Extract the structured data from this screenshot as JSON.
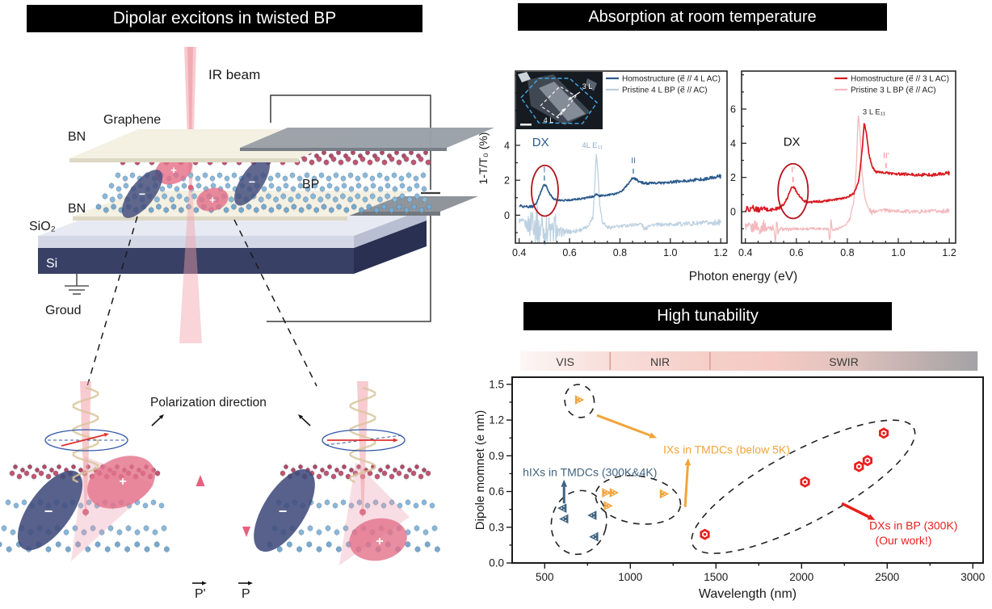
{
  "panels": {
    "title_left": "Dipolar excitons in twisted BP",
    "title_absorption": "Absorption at room temperature",
    "title_tunability": "High tunability"
  },
  "device": {
    "ir_beam": "IR beam",
    "graphene": "Graphene",
    "bn_top": "BN",
    "bp": "BP",
    "bn_bottom": "BN",
    "sio2": "SiO₂",
    "si": "Si",
    "ground": "Groud",
    "plus": "+",
    "minus": "−"
  },
  "zoom_panel": {
    "polarization": "Polarization direction",
    "p_prime": "P'",
    "p": "P",
    "plus": "+",
    "minus": "−"
  },
  "chart_data": [
    {
      "type": "line",
      "id": "abs-left",
      "ylabel": "1-T/T₀ (%)",
      "xlabel": "Photon energy (eV)",
      "xlim": [
        0.385,
        1.225
      ],
      "ylim": [
        -1.6,
        8.25
      ],
      "xticks": [
        0.4,
        0.6,
        0.8,
        1.0,
        1.2
      ],
      "yticks": [
        0,
        2,
        4
      ],
      "legend": [
        {
          "label": "Homostructure (e⃗ // 4 L AC)",
          "color": "#2b5a8c"
        },
        {
          "label": "Pristine 4 L BP (e⃗ // AC)",
          "color": "#b9cede"
        }
      ],
      "inset": {
        "labels": [
          "3 L",
          "4 L"
        ]
      },
      "annotations": [
        {
          "text": "DX",
          "x": 0.485,
          "y": 3.95,
          "color": "#2b5a8c",
          "size": 15
        },
        {
          "text": "I",
          "x": 0.5,
          "y": 2.45,
          "color": "#3c6d99",
          "size": 10
        },
        {
          "text": "4L E₁₁",
          "x": 0.69,
          "y": 3.85,
          "color": "#93abc4",
          "size": 9.5
        },
        {
          "text": "II",
          "x": 0.853,
          "y": 2.98,
          "color": "#3c6d99",
          "size": 10
        }
      ],
      "peak_ticks": [
        [
          0.5,
          1.98,
          2.26,
          "#3c6d99"
        ],
        [
          0.853,
          2.38,
          2.66,
          "#3c6d99"
        ]
      ],
      "ellipse": {
        "x": 0.502,
        "y": 1.4,
        "rx": 0.053,
        "ry": 1.45,
        "color": "#b5121b"
      },
      "series": [
        {
          "name": "pristine-4L-BP",
          "color": "#bdd1e1",
          "width": 1.3,
          "points": [
            [
              0.4,
              -0.3,
              0.15
            ],
            [
              0.43,
              -0.55,
              0.3
            ],
            [
              0.445,
              -0.55,
              0.9
            ],
            [
              0.455,
              0.2,
              1.1
            ],
            [
              0.462,
              -0.6,
              1.1
            ],
            [
              0.47,
              -0.3,
              1.2
            ],
            [
              0.478,
              -1.0,
              0.9
            ],
            [
              0.49,
              -0.5,
              1.1
            ],
            [
              0.5,
              -1.05,
              0.7
            ],
            [
              0.515,
              -0.7,
              0.9
            ],
            [
              0.53,
              -1.1,
              0.7
            ],
            [
              0.545,
              -0.6,
              0.9
            ],
            [
              0.555,
              -1.1,
              0.4
            ],
            [
              0.57,
              -0.95,
              0.25
            ],
            [
              0.6,
              -0.95,
              0.15
            ],
            [
              0.64,
              -0.85,
              0.12
            ],
            [
              0.67,
              -0.7,
              0.1
            ],
            [
              0.693,
              -0.1,
              0.1
            ],
            [
              0.7,
              1.8,
              0.1
            ],
            [
              0.706,
              3.55,
              0.08
            ],
            [
              0.712,
              2.6,
              0.08
            ],
            [
              0.72,
              0.6,
              0.1
            ],
            [
              0.73,
              -0.35,
              0.12
            ],
            [
              0.75,
              -0.7,
              0.1
            ],
            [
              0.78,
              -0.68,
              0.1
            ],
            [
              0.85,
              -0.55,
              0.1
            ],
            [
              0.885,
              -0.5,
              0.1
            ],
            [
              0.9,
              -0.85,
              0.12
            ],
            [
              0.915,
              -0.55,
              0.1
            ],
            [
              0.95,
              -0.55,
              0.1
            ],
            [
              1.05,
              -0.5,
              0.12
            ],
            [
              1.15,
              -0.45,
              0.15
            ],
            [
              1.2,
              -0.4,
              0.17
            ]
          ]
        },
        {
          "name": "homostructure-4L",
          "color": "#2b5a8c",
          "width": 1.7,
          "points": [
            [
              0.4,
              0.55,
              0.07
            ],
            [
              0.43,
              0.48,
              0.07
            ],
            [
              0.455,
              0.5,
              0.06
            ],
            [
              0.47,
              0.7,
              0.05
            ],
            [
              0.485,
              1.3,
              0.05
            ],
            [
              0.497,
              1.75,
              0.05
            ],
            [
              0.507,
              1.68,
              0.05
            ],
            [
              0.52,
              1.25,
              0.05
            ],
            [
              0.535,
              0.95,
              0.05
            ],
            [
              0.55,
              0.85,
              0.05
            ],
            [
              0.58,
              0.85,
              0.05
            ],
            [
              0.62,
              0.9,
              0.05
            ],
            [
              0.66,
              0.97,
              0.05
            ],
            [
              0.695,
              1.07,
              0.05
            ],
            [
              0.705,
              1.22,
              0.05
            ],
            [
              0.715,
              1.1,
              0.05
            ],
            [
              0.74,
              1.12,
              0.05
            ],
            [
              0.78,
              1.22,
              0.05
            ],
            [
              0.81,
              1.4,
              0.05
            ],
            [
              0.835,
              1.85,
              0.06
            ],
            [
              0.85,
              2.12,
              0.06
            ],
            [
              0.862,
              2.07,
              0.06
            ],
            [
              0.88,
              1.88,
              0.06
            ],
            [
              0.91,
              1.82,
              0.07
            ],
            [
              0.97,
              1.85,
              0.07
            ],
            [
              1.03,
              1.92,
              0.08
            ],
            [
              1.1,
              2.02,
              0.09
            ],
            [
              1.15,
              2.1,
              0.1
            ],
            [
              1.2,
              2.22,
              0.11
            ]
          ]
        }
      ]
    },
    {
      "type": "line",
      "id": "abs-right",
      "xlim": [
        0.385,
        1.225
      ],
      "ylim": [
        -1.84,
        8.22
      ],
      "xticks": [
        0.4,
        0.6,
        0.8,
        1.0,
        1.2
      ],
      "yticks": [
        0,
        2,
        4,
        6
      ],
      "legend": [
        {
          "label": "Homostructure (e⃗ // 3 L AC)",
          "color": "#d71920"
        },
        {
          "label": "Pristine 3 L BP (e⃗ // AC)",
          "color": "#f3b9bd"
        }
      ],
      "annotations": [
        {
          "text": "DX",
          "x": 0.582,
          "y": 3.85,
          "color": "#111111",
          "size": 15
        },
        {
          "text": "I'",
          "x": 0.587,
          "y": 2.3,
          "color": "#ef8a8a",
          "size": 10
        },
        {
          "text": "3 L E₁₁",
          "x": 0.905,
          "y": 5.7,
          "color": "#222222",
          "size": 9.5
        },
        {
          "text": "II'",
          "x": 0.952,
          "y": 3.12,
          "color": "#ef8a8a",
          "size": 10
        }
      ],
      "peak_ticks": [
        [
          0.587,
          1.72,
          2.02,
          "#ef8a8a"
        ],
        [
          0.952,
          2.55,
          2.84,
          "#ef8a8a"
        ]
      ],
      "ellipse": {
        "x": 0.587,
        "y": 1.2,
        "rx": 0.059,
        "ry": 1.6,
        "color": "#b5121b"
      },
      "series": [
        {
          "name": "pristine-3L-BP",
          "color": "#f3b9bd",
          "width": 1.3,
          "points": [
            [
              0.4,
              -0.85,
              0.25
            ],
            [
              0.425,
              -1.0,
              0.3
            ],
            [
              0.44,
              -0.75,
              0.35
            ],
            [
              0.455,
              -1.05,
              0.3
            ],
            [
              0.47,
              -0.8,
              0.35
            ],
            [
              0.485,
              -1.0,
              0.25
            ],
            [
              0.5,
              -0.9,
              0.2
            ],
            [
              0.512,
              -0.95,
              0.15
            ],
            [
              0.518,
              -1.9,
              0.1
            ],
            [
              0.523,
              -0.35,
              0.1
            ],
            [
              0.528,
              -1.35,
              0.1
            ],
            [
              0.535,
              -1.0,
              0.1
            ],
            [
              0.56,
              -1.05,
              0.1
            ],
            [
              0.6,
              -1.0,
              0.08
            ],
            [
              0.65,
              -1.0,
              0.08
            ],
            [
              0.7,
              -0.98,
              0.08
            ],
            [
              0.726,
              -1.0,
              0.08
            ],
            [
              0.731,
              -1.75,
              0.05
            ],
            [
              0.736,
              -0.5,
              0.05
            ],
            [
              0.741,
              -1.1,
              0.05
            ],
            [
              0.76,
              -1.0,
              0.08
            ],
            [
              0.79,
              -0.85,
              0.08
            ],
            [
              0.81,
              -0.45,
              0.08
            ],
            [
              0.825,
              0.6,
              0.08
            ],
            [
              0.835,
              2.5,
              0.08
            ],
            [
              0.843,
              5.75,
              0.05
            ],
            [
              0.85,
              4.6,
              0.05
            ],
            [
              0.858,
              2.2,
              0.08
            ],
            [
              0.868,
              0.9,
              0.1
            ],
            [
              0.88,
              0.25,
              0.15
            ],
            [
              0.895,
              -0.05,
              0.15
            ],
            [
              0.92,
              0.1,
              0.1
            ],
            [
              0.97,
              0.05,
              0.1
            ],
            [
              1.05,
              0.0,
              0.1
            ],
            [
              1.15,
              0.02,
              0.12
            ],
            [
              1.2,
              0.05,
              0.13
            ]
          ]
        },
        {
          "name": "homostructure-3L",
          "color": "#d71920",
          "width": 1.7,
          "points": [
            [
              0.4,
              0.15,
              0.18
            ],
            [
              0.43,
              0.2,
              0.18
            ],
            [
              0.45,
              0.1,
              0.15
            ],
            [
              0.47,
              0.18,
              0.15
            ],
            [
              0.49,
              0.1,
              0.12
            ],
            [
              0.51,
              0.12,
              0.12
            ],
            [
              0.53,
              0.2,
              0.1
            ],
            [
              0.55,
              0.4,
              0.08
            ],
            [
              0.565,
              0.8,
              0.06
            ],
            [
              0.578,
              1.35,
              0.06
            ],
            [
              0.59,
              1.45,
              0.06
            ],
            [
              0.6,
              1.2,
              0.06
            ],
            [
              0.615,
              0.85,
              0.06
            ],
            [
              0.63,
              0.62,
              0.06
            ],
            [
              0.65,
              0.55,
              0.06
            ],
            [
              0.68,
              0.58,
              0.06
            ],
            [
              0.72,
              0.63,
              0.06
            ],
            [
              0.76,
              0.72,
              0.06
            ],
            [
              0.8,
              0.85,
              0.06
            ],
            [
              0.825,
              1.05,
              0.06
            ],
            [
              0.845,
              1.8,
              0.06
            ],
            [
              0.858,
              3.6,
              0.06
            ],
            [
              0.866,
              5.15,
              0.05
            ],
            [
              0.874,
              4.7,
              0.05
            ],
            [
              0.885,
              3.3,
              0.06
            ],
            [
              0.9,
              2.55,
              0.06
            ],
            [
              0.915,
              2.3,
              0.07
            ],
            [
              0.94,
              2.28,
              0.07
            ],
            [
              1.0,
              2.2,
              0.08
            ],
            [
              1.08,
              2.15,
              0.09
            ],
            [
              1.15,
              2.17,
              0.1
            ],
            [
              1.2,
              2.25,
              0.11
            ]
          ]
        }
      ]
    },
    {
      "type": "scatter",
      "id": "tunability",
      "xlabel": "Wavelength (nm)",
      "ylabel": "Dipole momnet (e nm)",
      "xlim": [
        310,
        3060
      ],
      "ylim": [
        0,
        1.56
      ],
      "xticks": [
        500,
        1000,
        1500,
        2000,
        2500,
        3000
      ],
      "yticks": [
        0.0,
        0.3,
        0.6,
        0.9,
        1.2,
        1.5
      ],
      "bands": {
        "labels": [
          "VIS",
          "NIR",
          "SWIR"
        ],
        "range_nm": [
          358,
          3028
        ],
        "dividers_nm": [
          882,
          1465
        ]
      },
      "series": [
        {
          "name": "hIXs in TMDCs (300K&4K)",
          "marker": "triangle-left",
          "color": "#3f6380",
          "points": [
            [
              605,
              0.46
            ],
            [
              615,
              0.37
            ],
            [
              780,
              0.4
            ],
            [
              790,
              0.22
            ]
          ]
        },
        {
          "name": "IXs in TMDCs (below 5K)",
          "marker": "triangle-right",
          "color": "#f2a43b",
          "points": [
            [
              700,
              1.37
            ],
            [
              858,
              0.59
            ],
            [
              902,
              0.59
            ],
            [
              868,
              0.48
            ],
            [
              1195,
              0.58
            ]
          ]
        },
        {
          "name": "DXs in BP (300K) (Our work!)",
          "marker": "hexagon",
          "color": "#e8201e",
          "points": [
            [
              1435,
              0.24
            ],
            [
              2020,
              0.68
            ],
            [
              2335,
              0.81
            ],
            [
              2385,
              0.86
            ],
            [
              2480,
              1.09
            ]
          ]
        }
      ],
      "ellipses": [
        {
          "cx": 703,
          "cy": 1.36,
          "rx_nm": 85,
          "ry": 0.14,
          "rot": -18
        },
        {
          "cx": 700,
          "cy": 0.34,
          "rx_nm": 160,
          "ry": 0.27,
          "rot": 14
        },
        {
          "cx": 1045,
          "cy": 0.53,
          "rx_nm": 250,
          "ry": 0.2,
          "rot": 8
        },
        {
          "cx": 2010,
          "cy": 0.64,
          "rx_nm": 730,
          "ry": 0.3,
          "rot": -28
        }
      ],
      "arrows": [
        {
          "x1": 613,
          "y1": 0.5,
          "x2": 613,
          "y2": 0.7,
          "color": "#3f6380",
          "w": 3
        },
        {
          "x1": 805,
          "y1": 1.24,
          "x2": 1155,
          "y2": 1.05,
          "color": "#f2a43b",
          "w": 3
        },
        {
          "x1": 1320,
          "y1": 0.47,
          "x2": 1338,
          "y2": 0.88,
          "color": "#f2a43b",
          "w": 3
        },
        {
          "x1": 2235,
          "y1": 0.5,
          "x2": 2430,
          "y2": 0.36,
          "color": "#e8201e",
          "w": 3.5
        }
      ],
      "annotations": [
        {
          "text": "hIXs in TMDCs (300K&4K)",
          "x": 372,
          "y": 0.73,
          "color": "#3f6380"
        },
        {
          "text": "IXs in TMDCs (below 5K)",
          "x": 1192,
          "y": 0.92,
          "color": "#f2a43b"
        },
        {
          "text": "DXs in BP (300K)",
          "x": 2395,
          "y": 0.28,
          "color": "#e8201e"
        },
        {
          "text": "(Our work!)",
          "x": 2430,
          "y": 0.155,
          "color": "#e8201e"
        }
      ]
    }
  ],
  "colors": {
    "banner_bg": "#000000",
    "banner_text": "#ffffff",
    "annotation_red": "#b5121b",
    "hix_blue": "#3f6380",
    "ix_orange": "#f2a43b",
    "dx_red": "#e8201e"
  }
}
